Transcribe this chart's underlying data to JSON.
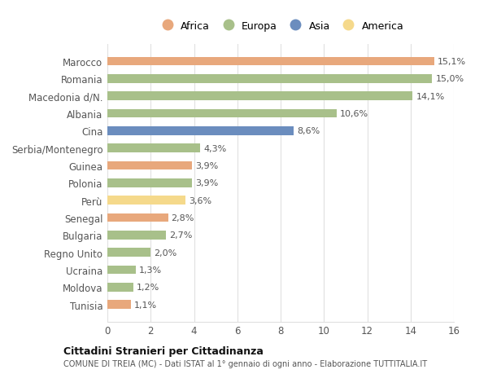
{
  "categories": [
    "Tunisia",
    "Moldova",
    "Ucraina",
    "Regno Unito",
    "Bulgaria",
    "Senegal",
    "Perù",
    "Polonia",
    "Guinea",
    "Serbia/Montenegro",
    "Cina",
    "Albania",
    "Macedonia d/N.",
    "Romania",
    "Marocco"
  ],
  "values": [
    1.1,
    1.2,
    1.3,
    2.0,
    2.7,
    2.8,
    3.6,
    3.9,
    3.9,
    4.3,
    8.6,
    10.6,
    14.1,
    15.0,
    15.1
  ],
  "continents": [
    "Africa",
    "Europa",
    "Europa",
    "Europa",
    "Europa",
    "Africa",
    "America",
    "Europa",
    "Africa",
    "Europa",
    "Asia",
    "Europa",
    "Europa",
    "Europa",
    "Africa"
  ],
  "colors": {
    "Africa": "#E8A87C",
    "Europa": "#A8C08A",
    "Asia": "#6B8DBE",
    "America": "#F5D98B"
  },
  "legend_order": [
    "Africa",
    "Europa",
    "Asia",
    "America"
  ],
  "title1": "Cittadini Stranieri per Cittadinanza",
  "title2": "COMUNE DI TREIA (MC) - Dati ISTAT al 1° gennaio di ogni anno - Elaborazione TUTTITALIA.IT",
  "xlim": [
    0,
    16
  ],
  "xticks": [
    0,
    2,
    4,
    6,
    8,
    10,
    12,
    14,
    16
  ],
  "bg_color": "#ffffff",
  "grid_color": "#e0e0e0",
  "bar_height": 0.5
}
